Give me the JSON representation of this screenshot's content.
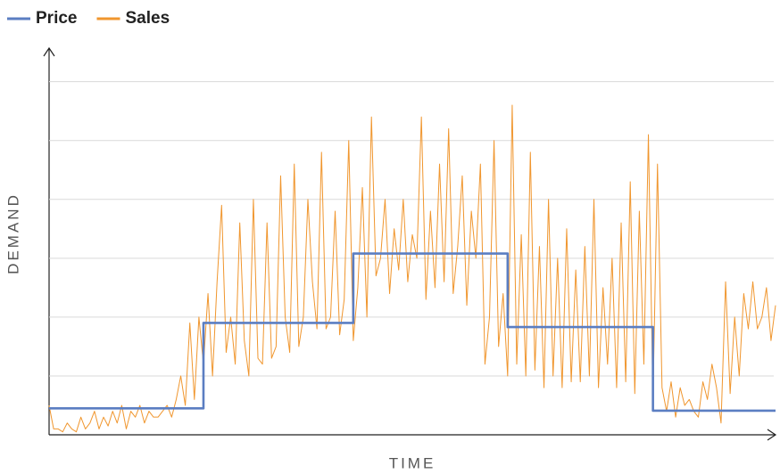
{
  "chart_data": {
    "type": "line",
    "xlabel": "TIME",
    "ylabel": "DEMAND",
    "x": [
      0,
      1,
      2,
      3,
      4,
      5,
      6,
      7,
      8,
      9,
      10,
      11,
      12,
      13,
      14,
      15,
      16,
      17,
      18,
      19,
      20,
      21,
      22,
      23,
      24,
      25,
      26,
      27,
      28,
      29,
      30,
      31,
      32,
      33,
      34,
      35,
      36,
      37,
      38,
      39,
      40,
      41,
      42,
      43,
      44,
      45,
      46,
      47,
      48,
      49,
      50,
      51,
      52,
      53,
      54,
      55,
      56,
      57,
      58,
      59,
      60,
      61,
      62,
      63,
      64,
      65,
      66,
      67,
      68,
      69,
      70,
      71,
      72,
      73,
      74,
      75,
      76,
      77,
      78,
      79,
      80,
      81,
      82,
      83,
      84,
      85,
      86,
      87,
      88,
      89,
      90,
      91,
      92,
      93,
      94,
      95,
      96,
      97,
      98,
      99,
      100,
      101,
      102,
      103,
      104,
      105,
      106,
      107,
      108,
      109,
      110,
      111,
      112,
      113,
      114,
      115,
      116,
      117,
      118,
      119,
      120,
      121,
      122,
      123,
      124,
      125,
      126,
      127,
      128,
      129,
      130,
      131,
      132,
      133,
      134,
      135,
      136,
      137,
      138,
      139,
      140,
      141,
      142,
      143,
      144,
      145,
      146,
      147,
      148,
      149,
      150,
      151,
      152,
      153,
      154,
      155,
      156,
      157,
      158,
      159,
      160
    ],
    "series": [
      {
        "name": "Price",
        "color": "#5b7ec2",
        "step": true,
        "values": [
          0.45,
          0.45,
          0.45,
          0.45,
          0.45,
          0.45,
          0.45,
          0.45,
          0.45,
          0.45,
          0.45,
          0.45,
          0.45,
          0.45,
          0.45,
          0.45,
          0.45,
          0.45,
          0.45,
          0.45,
          0.45,
          0.45,
          0.45,
          0.45,
          0.45,
          0.45,
          0.45,
          0.45,
          0.45,
          0.45,
          0.45,
          0.45,
          0.45,
          0.45,
          1.9,
          1.9,
          1.9,
          1.9,
          1.9,
          1.9,
          1.9,
          1.9,
          1.9,
          1.9,
          1.9,
          1.9,
          1.9,
          1.9,
          1.9,
          1.9,
          1.9,
          1.9,
          1.9,
          1.9,
          1.9,
          1.9,
          1.9,
          1.9,
          1.9,
          1.9,
          1.9,
          1.9,
          1.9,
          1.9,
          1.9,
          1.9,
          1.9,
          3.08,
          3.08,
          3.08,
          3.08,
          3.08,
          3.08,
          3.08,
          3.08,
          3.08,
          3.08,
          3.08,
          3.08,
          3.08,
          3.08,
          3.08,
          3.08,
          3.08,
          3.08,
          3.08,
          3.08,
          3.08,
          3.08,
          3.08,
          3.08,
          3.08,
          3.08,
          3.08,
          3.08,
          3.08,
          3.08,
          3.08,
          3.08,
          3.08,
          3.08,
          1.83,
          1.83,
          1.83,
          1.83,
          1.83,
          1.83,
          1.83,
          1.83,
          1.83,
          1.83,
          1.83,
          1.83,
          1.83,
          1.83,
          1.83,
          1.83,
          1.83,
          1.83,
          1.83,
          1.83,
          1.83,
          1.83,
          1.83,
          1.83,
          1.83,
          1.83,
          1.83,
          1.83,
          1.83,
          1.83,
          1.83,
          1.83,
          0.41,
          0.41,
          0.41,
          0.41,
          0.41,
          0.41,
          0.41,
          0.41,
          0.41,
          0.41,
          0.41,
          0.41,
          0.41,
          0.41,
          0.41,
          0.41,
          0.41,
          0.41,
          0.41,
          0.41,
          0.41,
          0.41,
          0.41,
          0.41,
          0.41,
          0.41,
          0.41,
          0.41
        ]
      },
      {
        "name": "Sales",
        "color": "#f0962e",
        "step": false,
        "values": [
          0.5,
          0.1,
          0.1,
          0.05,
          0.2,
          0.1,
          0.05,
          0.3,
          0.1,
          0.2,
          0.4,
          0.1,
          0.3,
          0.15,
          0.4,
          0.2,
          0.5,
          0.1,
          0.4,
          0.3,
          0.5,
          0.2,
          0.4,
          0.3,
          0.3,
          0.4,
          0.5,
          0.3,
          0.6,
          1.0,
          0.5,
          1.9,
          0.6,
          2.0,
          1.2,
          2.4,
          1.0,
          2.6,
          3.9,
          1.4,
          2.0,
          1.2,
          3.6,
          1.6,
          1.0,
          4.0,
          1.3,
          1.2,
          3.6,
          1.3,
          1.5,
          4.4,
          2.0,
          1.4,
          4.6,
          1.5,
          2.0,
          4.0,
          2.6,
          1.8,
          4.8,
          1.8,
          2.0,
          3.8,
          1.7,
          2.3,
          5.0,
          1.6,
          2.5,
          4.2,
          2.0,
          5.4,
          2.7,
          3.0,
          4.0,
          2.4,
          3.5,
          2.8,
          4.0,
          2.6,
          3.4,
          3.0,
          5.4,
          2.3,
          3.8,
          2.5,
          4.6,
          2.6,
          5.2,
          2.4,
          3.2,
          4.4,
          2.2,
          3.8,
          3.0,
          4.6,
          1.2,
          2.0,
          5.0,
          1.5,
          2.4,
          1.0,
          5.6,
          1.2,
          3.4,
          1.0,
          4.8,
          1.1,
          3.2,
          0.8,
          4.0,
          1.0,
          3.0,
          0.8,
          3.5,
          0.9,
          2.8,
          0.9,
          3.2,
          1.0,
          4.0,
          0.8,
          2.5,
          1.2,
          3.0,
          0.8,
          3.6,
          0.9,
          4.3,
          0.7,
          3.8,
          1.2,
          5.1,
          0.6,
          4.6,
          0.8,
          0.4,
          0.9,
          0.3,
          0.8,
          0.5,
          0.6,
          0.4,
          0.3,
          0.9,
          0.6,
          1.2,
          0.8,
          0.2,
          2.6,
          0.7,
          2.0,
          1.0,
          2.4,
          1.8,
          2.6,
          1.8,
          2.0,
          2.5,
          1.6,
          2.2
        ]
      }
    ],
    "xlim": [
      0,
      160
    ],
    "ylim": [
      0,
      6.6
    ],
    "yticks": [
      1,
      2,
      3,
      4,
      5,
      6
    ],
    "grid": true,
    "legend": "top-left"
  }
}
